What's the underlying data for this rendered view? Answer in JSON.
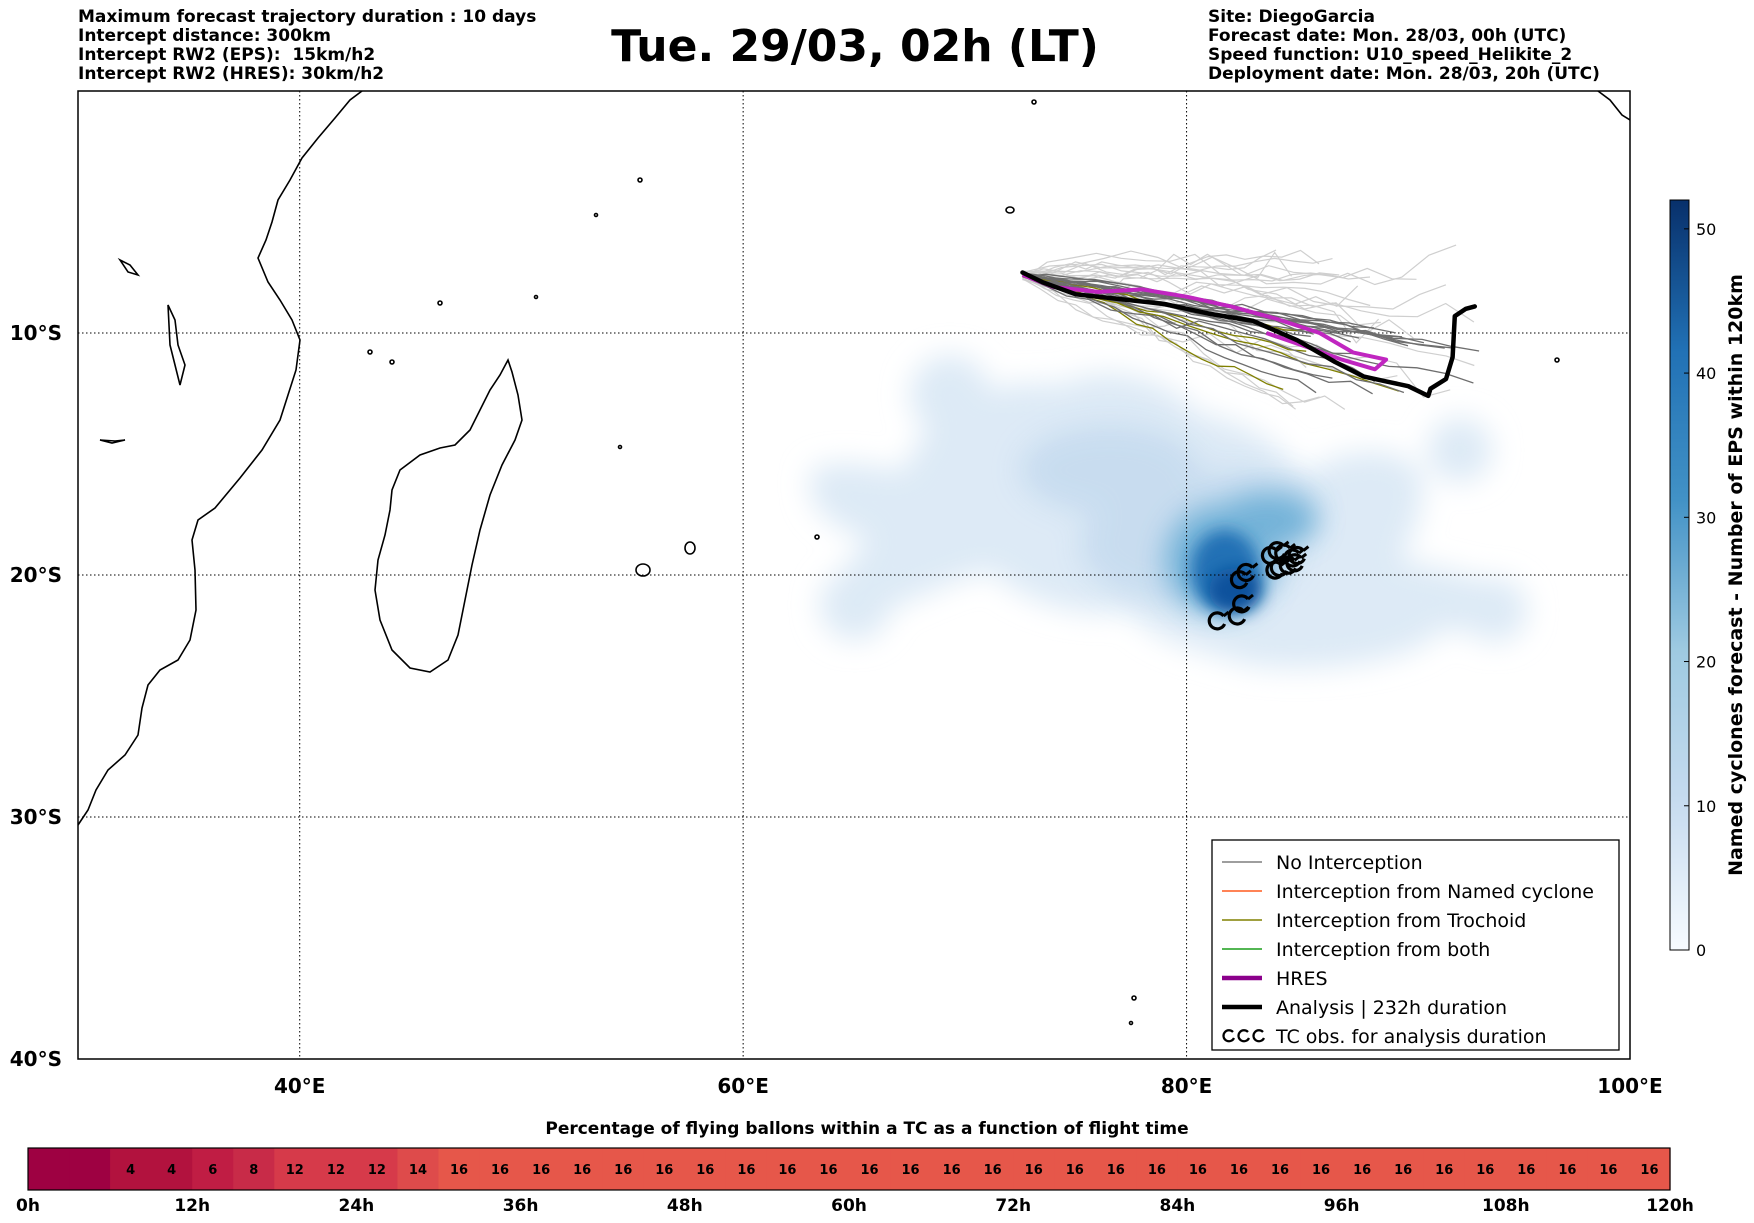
{
  "header_left": [
    "Maximum forecast trajectory duration : 10 days",
    "Intercept distance: 300km",
    "Intercept RW2 (EPS):  15km/h2",
    "Intercept RW2 (HRES): 30km/h2"
  ],
  "header_right": [
    "Site: DiegoGarcia",
    "Forecast date: Mon. 28/03, 00h (UTC)",
    "Speed function: U10_speed_Helikite_2",
    "Deployment date: Mon. 28/03, 20h (UTC)"
  ],
  "title": "Tue. 29/03, 02h (LT)",
  "chart_data": [
    {
      "type": "map",
      "lon_range": [
        30,
        100
      ],
      "lat_range": [
        -40,
        0
      ],
      "x_ticks": [
        {
          "value": 40,
          "label": "40°E"
        },
        {
          "value": 60,
          "label": "60°E"
        },
        {
          "value": 80,
          "label": "80°E"
        },
        {
          "value": 100,
          "label": "100°E"
        }
      ],
      "y_ticks": [
        {
          "value": -10,
          "label": "10°S"
        },
        {
          "value": -20,
          "label": "20°S"
        },
        {
          "value": -30,
          "label": "30°S"
        },
        {
          "value": -40,
          "label": "40°S"
        }
      ],
      "grid": true,
      "legend_position": "bottom-right",
      "legend": [
        {
          "label": "No Interception",
          "color": "#7f7f7f",
          "style": "thin"
        },
        {
          "label": "Interception from Named cyclone",
          "color": "#ff5a1e",
          "style": "thin"
        },
        {
          "label": "Interception from Trochoid",
          "color": "#808000",
          "style": "thin"
        },
        {
          "label": "Interception from both",
          "color": "#1a9e1a",
          "style": "thin"
        },
        {
          "label": "HRES",
          "color": "#8b008b",
          "style": "thick"
        },
        {
          "label": "Analysis | 232h duration",
          "color": "#000000",
          "style": "thick"
        },
        {
          "label": "TC obs. for analysis duration",
          "color": "#000000",
          "style": "tc-symbols"
        }
      ],
      "colorbar": {
        "label": "Named cyclones forecast - Number of EPS within 120km",
        "range": [
          0,
          52
        ],
        "ticks": [
          0,
          10,
          20,
          30,
          40,
          50
        ],
        "colormap": "Blues"
      },
      "analysis_track": [
        [
          72.6,
          -7.5
        ],
        [
          73.5,
          -7.9
        ],
        [
          75,
          -8.4
        ],
        [
          77,
          -8.6
        ],
        [
          79,
          -8.8
        ],
        [
          81,
          -9.2
        ],
        [
          83,
          -9.5
        ],
        [
          85,
          -10.3
        ],
        [
          86.7,
          -11.2
        ],
        [
          88,
          -11.8
        ],
        [
          89,
          -12
        ],
        [
          90,
          -12.2
        ],
        [
          90.9,
          -12.6
        ],
        [
          91,
          -12.3
        ],
        [
          91.7,
          -11.9
        ],
        [
          92,
          -11
        ],
        [
          92.1,
          -9.3
        ],
        [
          92.6,
          -9
        ],
        [
          93,
          -8.9
        ]
      ],
      "hres_track": [
        [
          72.6,
          -7.6
        ],
        [
          74,
          -8.1
        ],
        [
          76,
          -8.3
        ],
        [
          78,
          -8.2
        ],
        [
          80,
          -8.5
        ],
        [
          82,
          -8.9
        ],
        [
          84,
          -9.4
        ],
        [
          86,
          -10
        ],
        [
          87.5,
          -10.8
        ],
        [
          89,
          -11.1
        ],
        [
          88.5,
          -11.5
        ],
        [
          87,
          -11.1
        ],
        [
          85.5,
          -10.6
        ],
        [
          83.6,
          -10
        ]
      ],
      "tc_observations": [
        [
          81.4,
          -21.9
        ],
        [
          82.3,
          -21.7
        ],
        [
          82.5,
          -21.2
        ],
        [
          82.4,
          -20.2
        ],
        [
          82.7,
          -19.9
        ],
        [
          83.8,
          -19.2
        ],
        [
          84.1,
          -19.0
        ],
        [
          84.4,
          -19.1
        ],
        [
          84.8,
          -19.3
        ],
        [
          84.9,
          -19.5
        ],
        [
          84.6,
          -19.6
        ],
        [
          84.2,
          -19.7
        ],
        [
          84.0,
          -19.8
        ],
        [
          85.0,
          -19.2
        ]
      ]
    },
    {
      "type": "heatmap",
      "title": "Percentage of flying ballons within a TC as a function of flight time",
      "x_ticks": [
        "0h",
        "12h",
        "24h",
        "36h",
        "48h",
        "60h",
        "72h",
        "84h",
        "96h",
        "108h",
        "120h"
      ],
      "x_range_hours": [
        0,
        120
      ],
      "cell_hours": 3,
      "values": [
        null,
        null,
        4,
        4,
        6,
        8,
        12,
        12,
        12,
        14,
        16,
        16,
        16,
        16,
        16,
        16,
        16,
        16,
        16,
        16,
        16,
        16,
        16,
        16,
        16,
        16,
        16,
        16,
        16,
        16,
        16,
        16,
        16,
        16,
        16,
        16,
        16,
        16,
        16,
        16
      ]
    }
  ]
}
